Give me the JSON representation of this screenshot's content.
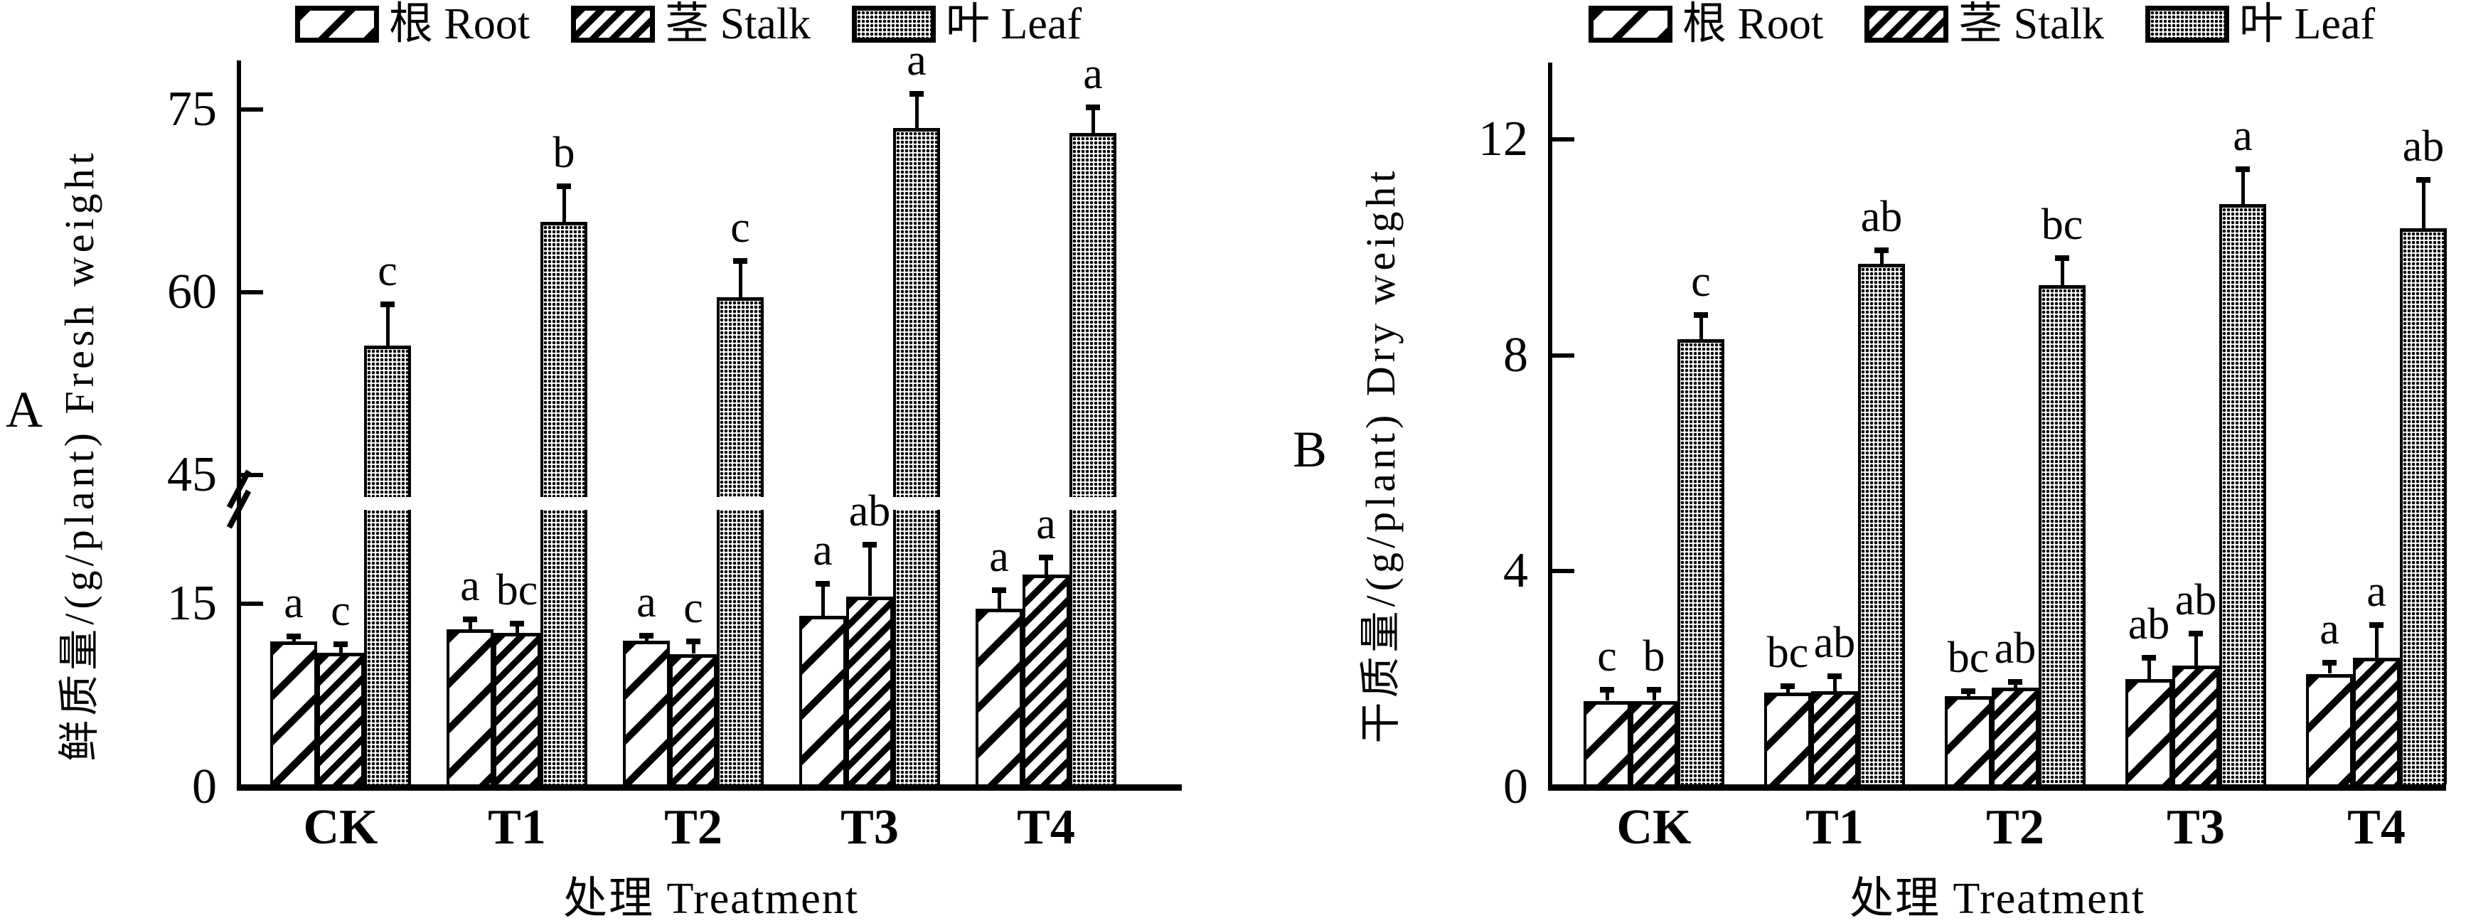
{
  "style": {
    "ink_color": "#000000",
    "background_color": "#ffffff",
    "leaf_fill_appearance": "#8f8f8f",
    "bar_fill_base": "#ffffff"
  },
  "legend": {
    "items": [
      {
        "label": "根 Root",
        "pattern": "diagonal-hatch-wide"
      },
      {
        "label": "茎 Stalk",
        "pattern": "diagonal-hatch-dense"
      },
      {
        "label": "叶 Leaf",
        "pattern": "dot-grid-gray"
      }
    ]
  },
  "chart_data": [
    {
      "id": "A",
      "type": "bar",
      "panel_label": "A",
      "ylabel": "鲜质量/(g/plant) Fresh weight",
      "xlabel": "处理 Treatment",
      "categories": [
        "CK",
        "T1",
        "T2",
        "T3",
        "T4"
      ],
      "ytick_labels": [
        "0",
        "15",
        "45",
        "60",
        "75"
      ],
      "yticks": [
        0,
        15,
        45,
        60,
        75
      ],
      "ylim_lower_segment": [
        0,
        20
      ],
      "ylim_upper_segment": [
        45,
        78
      ],
      "axis_break": {
        "present": true,
        "between": [
          15,
          45
        ]
      },
      "grid": false,
      "legend_position": "top",
      "series": [
        {
          "name": "根 Root",
          "pattern": "diagonal-hatch-wide",
          "values": [
            11.9,
            12.9,
            12.0,
            14.0,
            14.6
          ],
          "errors": [
            0.4,
            0.8,
            0.4,
            2.6,
            1.5
          ],
          "sig_letters": [
            "a",
            "a",
            "a",
            "a",
            "a"
          ]
        },
        {
          "name": "茎 Stalk",
          "pattern": "diagonal-hatch-dense",
          "values": [
            11.0,
            12.6,
            10.9,
            15.6,
            17.4
          ],
          "errors": [
            0.7,
            0.8,
            1.0,
            4.2,
            1.4
          ],
          "sig_letters": [
            "c",
            "bc",
            "c",
            "ab",
            "a"
          ]
        },
        {
          "name": "叶 Leaf",
          "pattern": "dot-grid-gray",
          "values": [
            55.6,
            65.8,
            59.6,
            73.5,
            73.1
          ],
          "errors": [
            3.4,
            2.9,
            3.0,
            2.8,
            2.1
          ],
          "sig_letters": [
            "c",
            "b",
            "c",
            "a",
            "a"
          ]
        }
      ]
    },
    {
      "id": "B",
      "type": "bar",
      "panel_label": "B",
      "ylabel": "干质量/(g/plant) Dry weight",
      "xlabel": "处理 Treatment",
      "categories": [
        "CK",
        "T1",
        "T2",
        "T3",
        "T4"
      ],
      "ytick_labels": [
        "0",
        "4",
        "8",
        "12"
      ],
      "yticks": [
        0,
        4,
        8,
        12
      ],
      "ylim": [
        0,
        13.4
      ],
      "axis_break": {
        "present": false
      },
      "grid": false,
      "legend_position": "top",
      "series": [
        {
          "name": "根 Root",
          "pattern": "diagonal-hatch-wide",
          "values": [
            1.6,
            1.75,
            1.68,
            2.0,
            2.1
          ],
          "errors": [
            0.2,
            0.12,
            0.1,
            0.4,
            0.2
          ],
          "sig_letters": [
            "c",
            "bc",
            "bc",
            "ab",
            "a"
          ]
        },
        {
          "name": "茎 Stalk",
          "pattern": "diagonal-hatch-dense",
          "values": [
            1.6,
            1.78,
            1.85,
            2.25,
            2.4
          ],
          "errors": [
            0.2,
            0.28,
            0.1,
            0.6,
            0.6
          ],
          "sig_letters": [
            "b",
            "ab",
            "ab",
            "ab",
            "a"
          ]
        },
        {
          "name": "叶 Leaf",
          "pattern": "dot-grid-gray",
          "values": [
            8.3,
            9.7,
            9.3,
            10.8,
            10.35
          ],
          "errors": [
            0.45,
            0.25,
            0.5,
            0.65,
            0.9
          ],
          "sig_letters": [
            "c",
            "ab",
            "bc",
            "a",
            "ab"
          ]
        }
      ]
    }
  ]
}
